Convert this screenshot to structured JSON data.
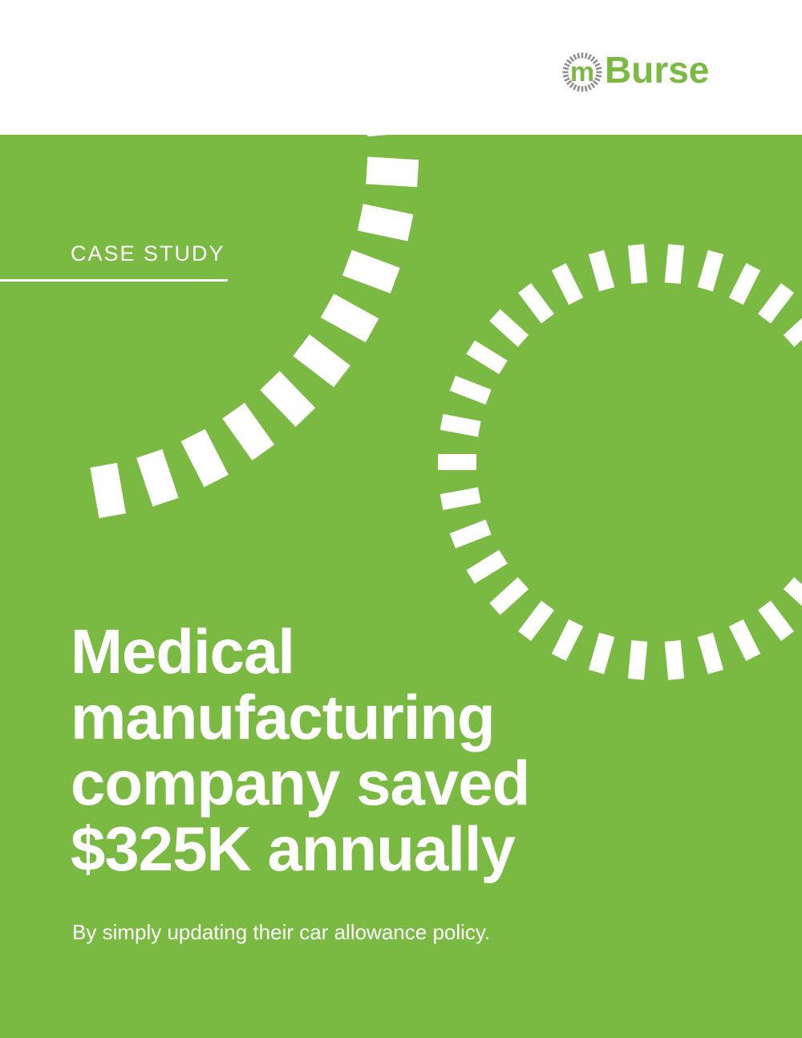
{
  "brand": {
    "logo_prefix": "m",
    "logo_suffix": "Burse",
    "color": "#7aba43",
    "ring_color": "#8f8f8f"
  },
  "cover": {
    "background": "#7aba43",
    "eyebrow": "CASE STUDY",
    "headline_lines": [
      "Medical",
      "manufacturing",
      "company saved",
      "$325K annually"
    ],
    "subhead": "By simply updating their car allowance policy."
  }
}
